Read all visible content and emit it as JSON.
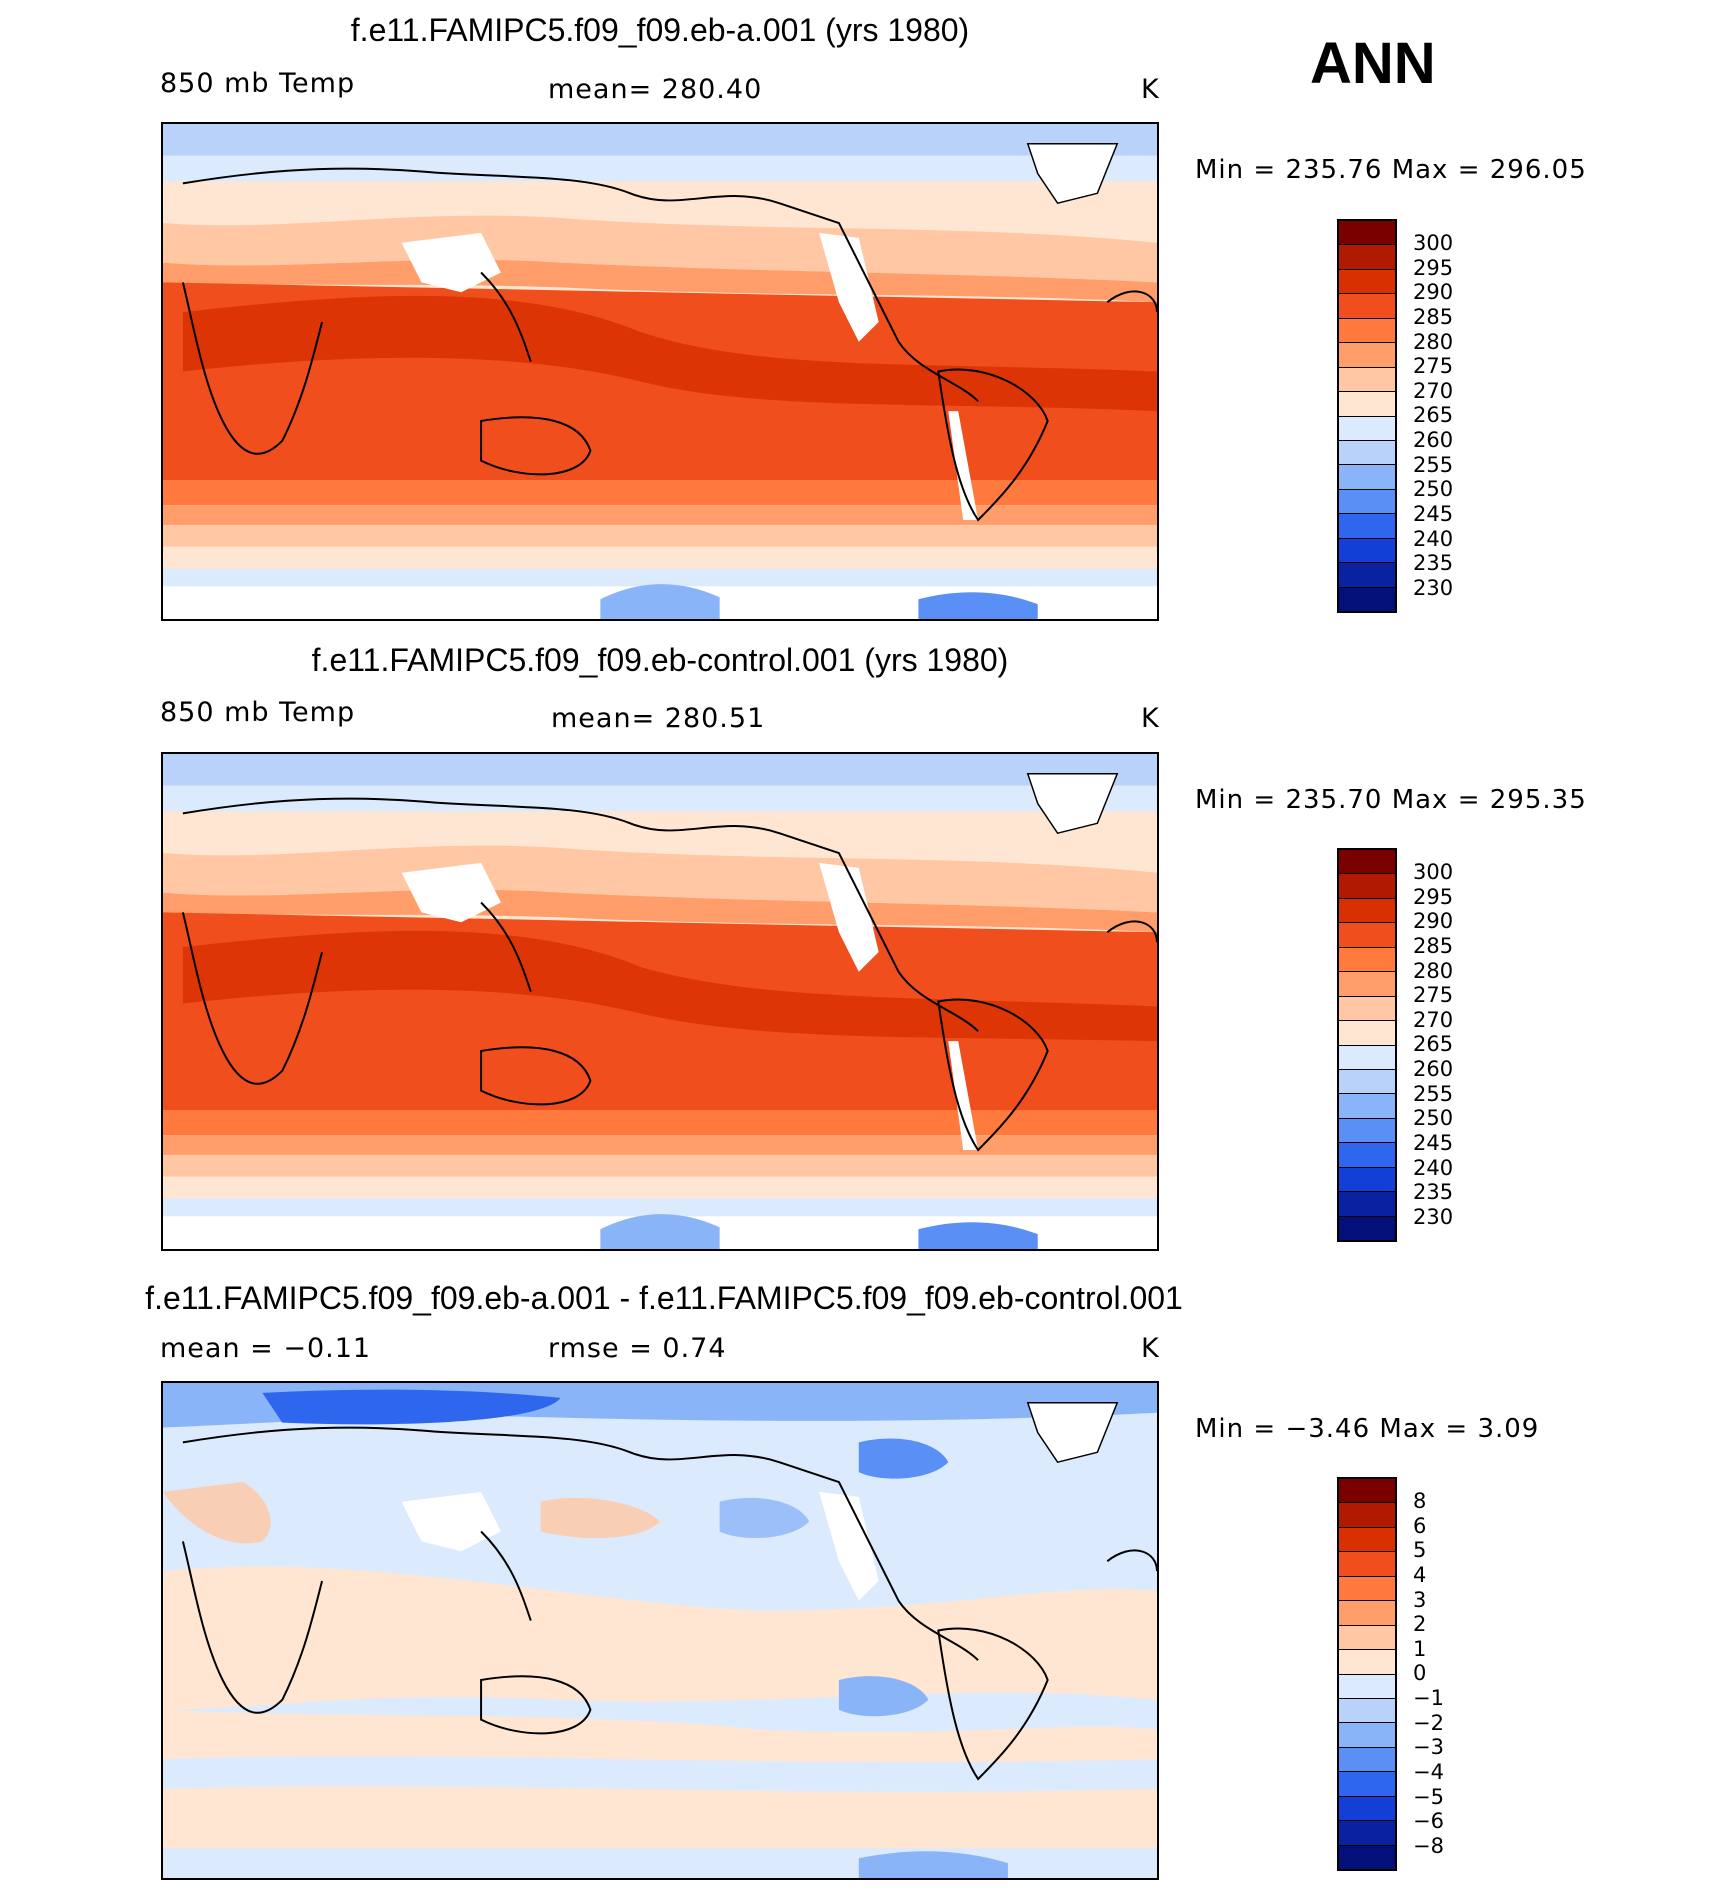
{
  "season": "ANN",
  "panels": [
    {
      "title": "f.e11.FAMIPC5.f09_f09.eb-a.001 (yrs 1980)",
      "variable": "850 mb Temp",
      "stat": "mean=  280.40",
      "units": "K",
      "min_max": "Min  =  235.76  Max  =  296.05",
      "palette": "abs",
      "colorbar_labels": [
        "300",
        "295",
        "290",
        "285",
        "280",
        "275",
        "270",
        "265",
        "260",
        "255",
        "250",
        "245",
        "240",
        "235",
        "230"
      ]
    },
    {
      "title": "f.e11.FAMIPC5.f09_f09.eb-control.001 (yrs 1980)",
      "variable": "850 mb Temp",
      "stat": "mean=  280.51",
      "units": "K",
      "min_max": "Min  =  235.70  Max  =  295.35",
      "palette": "abs",
      "colorbar_labels": [
        "300",
        "295",
        "290",
        "285",
        "280",
        "275",
        "270",
        "265",
        "260",
        "255",
        "250",
        "245",
        "240",
        "235",
        "230"
      ]
    },
    {
      "title": "f.e11.FAMIPC5.f09_f09.eb-a.001 - f.e11.FAMIPC5.f09_f09.eb-control.001",
      "variable": "mean  =    −0.11",
      "stat": "rmse  =     0.74",
      "units": "K",
      "min_max": "Min  =    −3.46  Max  =     3.09",
      "palette": "diff",
      "colorbar_labels": [
        "8",
        "6",
        "5",
        "4",
        "3",
        "2",
        "1",
        "0",
        "−1",
        "−2",
        "−3",
        "−4",
        "−5",
        "−6",
        "−8"
      ]
    }
  ],
  "colors": {
    "abs": [
      "#7a0000",
      "#b01a00",
      "#d83000",
      "#f04e1c",
      "#ff7a3c",
      "#ff9e6a",
      "#ffc7a3",
      "#ffe6d2",
      "#dbeafc",
      "#b8d2fa",
      "#8ab4f8",
      "#5a90f5",
      "#2e66ee",
      "#1240d6",
      "#0822a0",
      "#04107a"
    ],
    "diff": [
      "#7a0000",
      "#b01a00",
      "#d83000",
      "#f04e1c",
      "#ff7a3c",
      "#ff9e6a",
      "#ffc7a3",
      "#ffe6d2",
      "#dbeafc",
      "#b8d2fa",
      "#8ab4f8",
      "#5a90f5",
      "#2e66ee",
      "#1240d6",
      "#0822a0",
      "#04107a"
    ]
  }
}
